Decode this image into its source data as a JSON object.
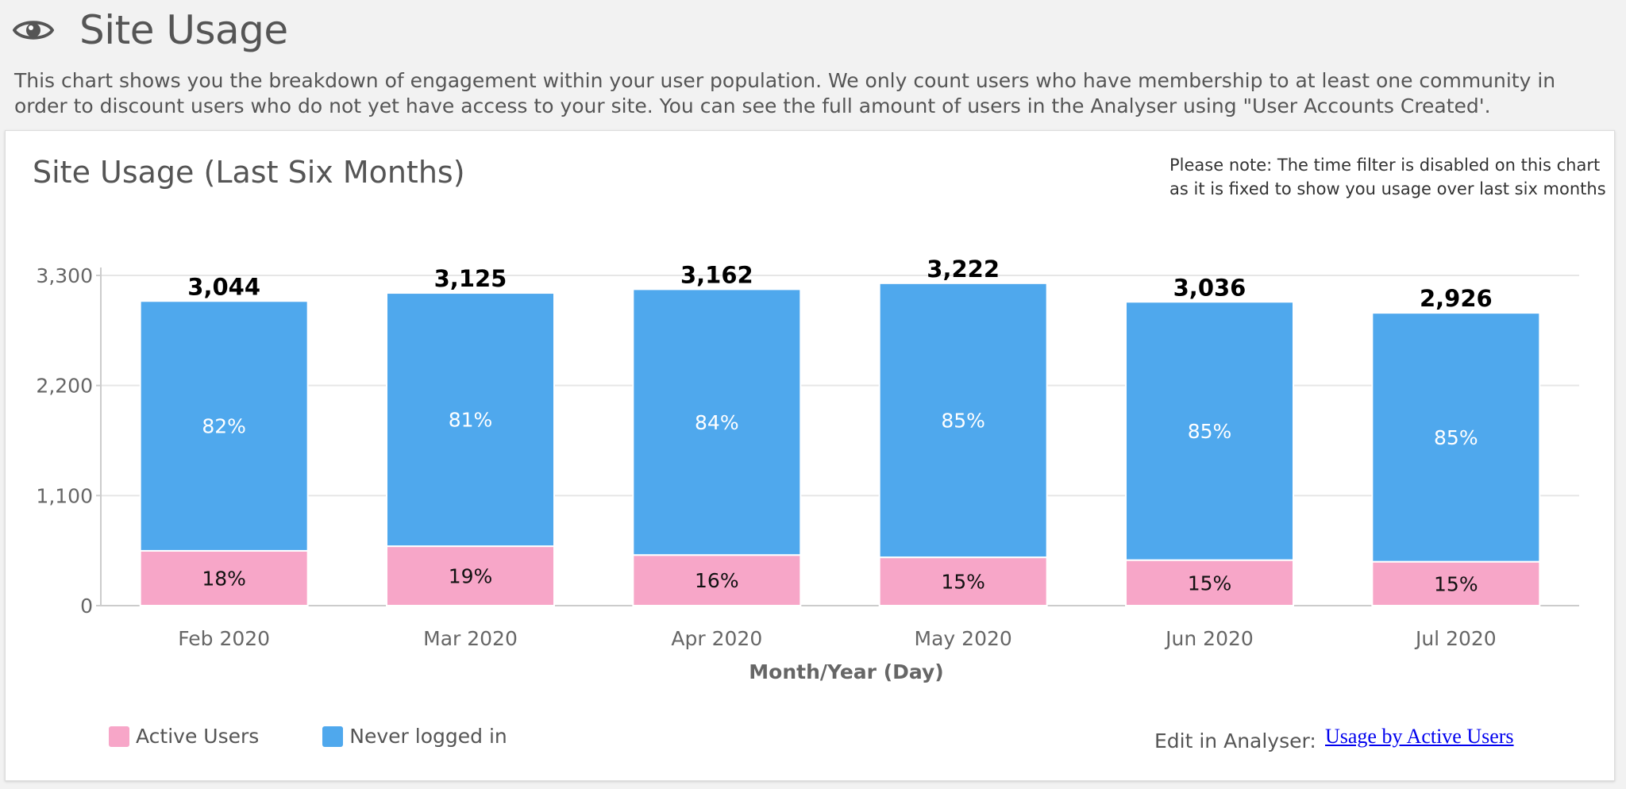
{
  "page": {
    "icon": "eye-icon",
    "title": "Site Usage",
    "description": "This chart shows you the breakdown of engagement within your user population. We only count users who have membership to at least one community in order to discount users who do not yet have access to your site. You can see the full amount of users in the Analyser using \"User Accounts Created'."
  },
  "card": {
    "title": "Site Usage (Last Six Months)",
    "note": "Please note: The time filter is disabled on this chart as it is fixed to show you usage over last six months",
    "edit_label": "Edit in Analyser:",
    "edit_link": "Usage by Active Users"
  },
  "legend": [
    {
      "label": "Active Users",
      "color": "#f7a6c8"
    },
    {
      "label": "Never logged in",
      "color": "#4fa8ed"
    }
  ],
  "chart_data": {
    "type": "bar",
    "stacked": true,
    "xlabel": "Month/Year (Day)",
    "ylabel": "",
    "ylim": [
      0,
      3300
    ],
    "yticks": [
      0,
      1100,
      2200,
      3300
    ],
    "ytick_labels": [
      "0",
      "1,100",
      "2,200",
      "3,300"
    ],
    "categories": [
      "Feb 2020",
      "Mar 2020",
      "Apr 2020",
      "May 2020",
      "Jun 2020",
      "Jul 2020"
    ],
    "totals": [
      3044,
      3125,
      3162,
      3222,
      3036,
      2926
    ],
    "total_labels": [
      "3,044",
      "3,125",
      "3,162",
      "3,222",
      "3,036",
      "2,926"
    ],
    "series": [
      {
        "name": "Active Users",
        "color": "#f7a6c8",
        "values": [
          548,
          594,
          506,
          483,
          455,
          439
        ],
        "labels": [
          "18%",
          "19%",
          "16%",
          "15%",
          "15%",
          "15%"
        ]
      },
      {
        "name": "Never logged in",
        "color": "#4fa8ed",
        "values": [
          2496,
          2531,
          2656,
          2739,
          2581,
          2487
        ],
        "labels": [
          "82%",
          "81%",
          "84%",
          "85%",
          "85%",
          "85%"
        ]
      }
    ],
    "grid": true,
    "legend_position": "bottom-left"
  }
}
